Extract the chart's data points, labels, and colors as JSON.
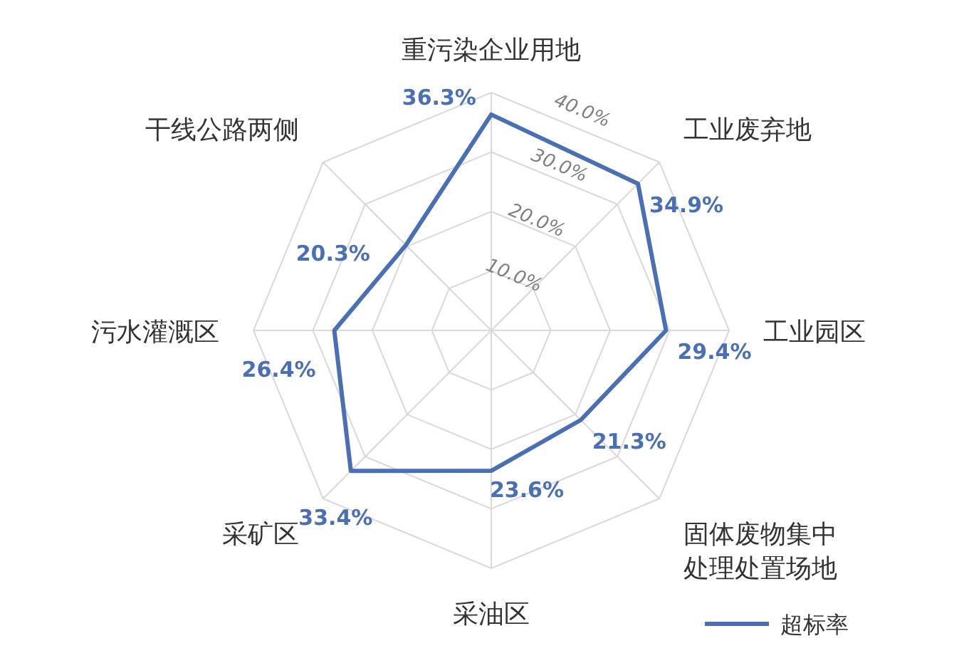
{
  "chart_data": {
    "type": "radar",
    "categories": [
      "重污染企业用地",
      "工业废弃地",
      "工业园区",
      "固体废物集中处理处置场地",
      "采油区",
      "采矿区",
      "污水灌溉区",
      "干线公路两侧"
    ],
    "series": [
      {
        "name": "超标率",
        "color": "#4a6fb5",
        "values": [
          36.3,
          34.9,
          29.4,
          21.3,
          23.6,
          33.4,
          26.4,
          20.3
        ],
        "value_labels": [
          "36.3%",
          "34.9%",
          "29.4%",
          "21.3%",
          "23.6%",
          "33.4%",
          "26.4%",
          "20.3%"
        ]
      }
    ],
    "ylim": [
      0,
      40
    ],
    "yticks": [
      {
        "value": 10,
        "label": "10.0%"
      },
      {
        "value": 20,
        "label": "20.0%"
      },
      {
        "value": 30,
        "label": "30.0%"
      },
      {
        "value": 40,
        "label": "40.0%"
      }
    ],
    "grid": true,
    "legend": "bottom right"
  }
}
